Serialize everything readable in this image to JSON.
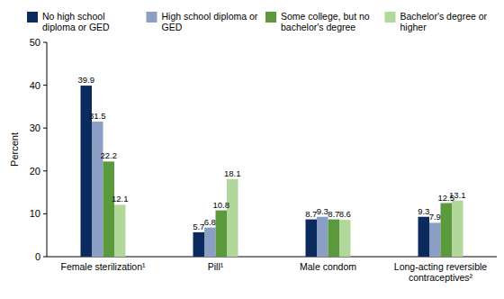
{
  "chart_data": {
    "type": "bar",
    "y_label": "Percent",
    "categories": [
      "Female sterilization¹",
      "Pill¹",
      "Male condom",
      "Long-acting reversible contraceptives²"
    ],
    "series": [
      {
        "name": "No high school diploma or GED",
        "color": "#0b2a5e",
        "values": [
          39.9,
          5.7,
          8.7,
          9.3
        ]
      },
      {
        "name": "High school diploma or GED",
        "color": "#8b9fc4",
        "values": [
          31.5,
          6.8,
          9.3,
          7.9
        ]
      },
      {
        "name": "Some college, but no bachelor's degree",
        "color": "#5a9a3c",
        "values": [
          22.2,
          10.8,
          8.7,
          12.5
        ]
      },
      {
        "name": "Bachelor's degree or higher",
        "color": "#b2d79a",
        "values": [
          12.1,
          18.1,
          8.6,
          13.1
        ]
      }
    ],
    "ylim": [
      0,
      50
    ],
    "yticks": [
      0,
      10,
      20,
      30,
      40,
      50
    ],
    "grid": false,
    "legend": "top",
    "data_labels": true
  }
}
